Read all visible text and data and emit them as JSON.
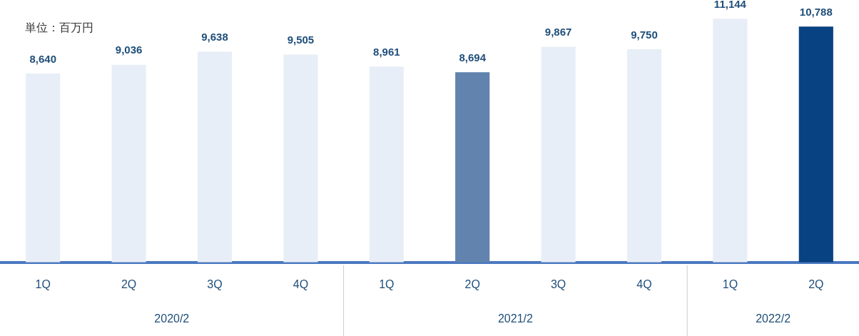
{
  "chart_data": {
    "type": "bar",
    "ylabel": "単位：百万円",
    "categories": [
      "1Q",
      "2Q",
      "3Q",
      "4Q",
      "1Q",
      "2Q",
      "3Q",
      "4Q",
      "1Q",
      "2Q"
    ],
    "values": [
      8640,
      9036,
      9638,
      9505,
      8961,
      8694,
      9867,
      9750,
      11144,
      10788
    ],
    "colors": [
      "#e8eef7",
      "#e8eef7",
      "#e8eef7",
      "#e8eef7",
      "#e8eef7",
      "#6183ae",
      "#e8eef7",
      "#e8eef7",
      "#e8eef7",
      "#084283"
    ],
    "value_labels": [
      "8,640",
      "9,036",
      "9,638",
      "9,505",
      "8,961",
      "8,694",
      "9,867",
      "9,750",
      "11,144",
      "10,788"
    ],
    "annotations": [
      "2020/2",
      "2021/2",
      "2022/2"
    ],
    "grid": false,
    "legend": false
  }
}
